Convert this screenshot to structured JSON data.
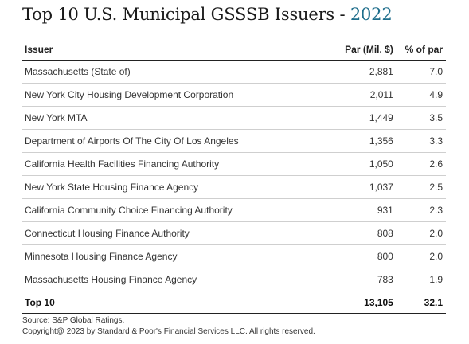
{
  "chart_data": {
    "type": "table",
    "title_main": "Top 10 U.S. Municipal GSSSB Issuers",
    "title_sep": " - ",
    "title_year": "2022",
    "columns": [
      "Issuer",
      "Par (Mil. $)",
      "% of par"
    ],
    "rows": [
      {
        "issuer": "Massachusetts (State of)",
        "par": "2,881",
        "pct": "7.0"
      },
      {
        "issuer": "New York City Housing Development Corporation",
        "par": "2,011",
        "pct": "4.9"
      },
      {
        "issuer": "New York MTA",
        "par": "1,449",
        "pct": "3.5"
      },
      {
        "issuer": "Department of Airports Of The City Of Los Angeles",
        "par": "1,356",
        "pct": "3.3"
      },
      {
        "issuer": "California Health Facilities Financing Authority",
        "par": "1,050",
        "pct": "2.6"
      },
      {
        "issuer": "New York State Housing Finance Agency",
        "par": "1,037",
        "pct": "2.5"
      },
      {
        "issuer": "California Community Choice Financing Authority",
        "par": "931",
        "pct": "2.3"
      },
      {
        "issuer": "Connecticut Housing Finance Authority",
        "par": "808",
        "pct": "2.0"
      },
      {
        "issuer": "Minnesota Housing Finance Agency",
        "par": "800",
        "pct": "2.0"
      },
      {
        "issuer": "Massachusetts Housing Finance Agency",
        "par": "783",
        "pct": "1.9"
      }
    ],
    "total": {
      "issuer": "Top 10",
      "par": "13,105",
      "pct": "32.1"
    },
    "source": "Source: S&P Global Ratings.",
    "copyright": "Copyright@ 2023 by Standard & Poor's Financial Services LLC. All rights reserved."
  }
}
